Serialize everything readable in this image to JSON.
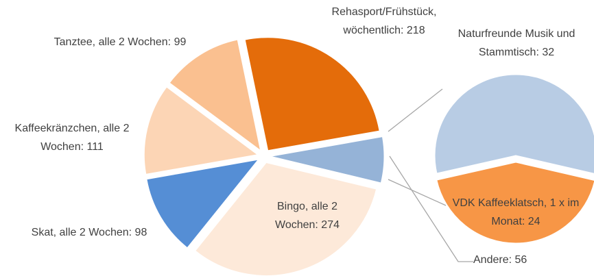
{
  "chart_data": [
    {
      "type": "pie",
      "categories": [
        "Andere",
        "Bingo, alle 2 Wochen",
        "Skat, alle 2 Wochen",
        "Kaffeekränzchen, alle 2 Wochen",
        "Tanztee, alle 2 Wochen",
        "Rehasport/Frühstück, wöchentlich"
      ],
      "values": [
        56,
        274,
        98,
        111,
        99,
        218
      ],
      "colors": [
        "#95b3d7",
        "#fde9d9",
        "#558ed5",
        "#fcd5b5",
        "#fac090",
        "#e46c0a"
      ]
    },
    {
      "type": "pie",
      "categories": [
        "VDK Kaffeeklatsch, 1 x im Monat",
        "Naturfreunde Musik und Stammtisch"
      ],
      "values": [
        24,
        32
      ],
      "colors": [
        "#f79646",
        "#b8cce4"
      ]
    }
  ]
}
